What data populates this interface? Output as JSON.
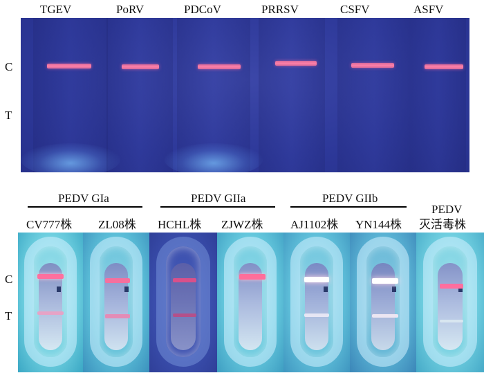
{
  "top": {
    "lanes": [
      "TGEV",
      "PoRV",
      "PDCoV",
      "PRRSV",
      "CSFV",
      "ASFV"
    ],
    "row_labels": {
      "c": "C",
      "t": "T"
    }
  },
  "bottom": {
    "groups": [
      "PEDV GIa",
      "PEDV GIIa",
      "PEDV GIIb"
    ],
    "strains": [
      "CV777株",
      "ZL08株",
      "HCHL株",
      "ZJWZ株",
      "AJ1102株",
      "YN144株"
    ],
    "inactivated": {
      "line1": "PEDV",
      "line2": "灭活毒株"
    },
    "row_labels": {
      "c": "C",
      "t": "T"
    }
  },
  "colors": {
    "top_panel": "#2d3899",
    "control_line": "#ff7fa8",
    "bottom_bg_cyan": "#5fc7d9",
    "bottom_bg_blue": "#3a4fb8"
  }
}
